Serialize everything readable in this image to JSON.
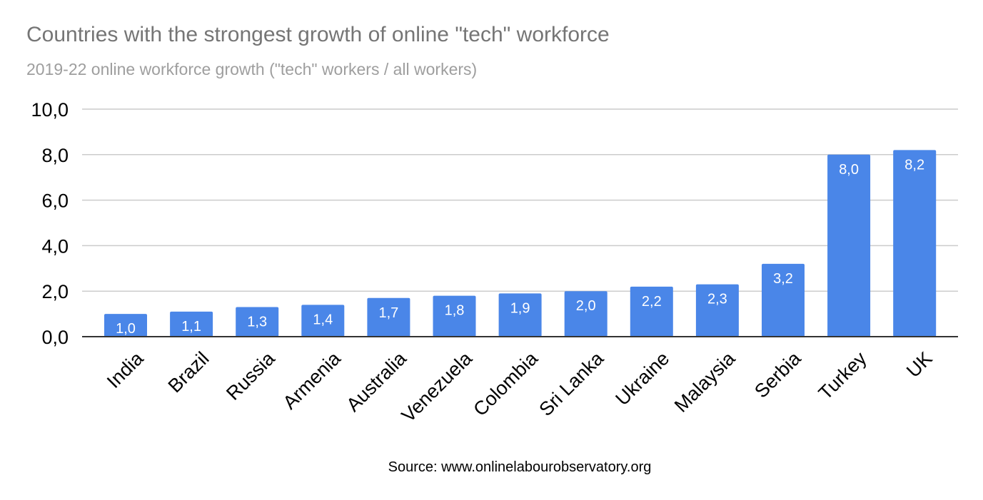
{
  "chart_data": {
    "type": "bar",
    "title": "Countries with the strongest growth of online \"tech\" workforce",
    "subtitle": "2019-22 online workforce growth (\"tech\" workers / all workers)",
    "source": "Source: www.onlinelabourobservatory.org",
    "categories": [
      "India",
      "Brazil",
      "Russia",
      "Armenia",
      "Australia",
      "Venezuela",
      "Colombia",
      "Sri Lanka",
      "Ukraine",
      "Malaysia",
      "Serbia",
      "Turkey",
      "UK"
    ],
    "values": [
      1.0,
      1.1,
      1.3,
      1.4,
      1.7,
      1.8,
      1.9,
      2.0,
      2.2,
      2.3,
      3.2,
      8.0,
      8.2
    ],
    "data_labels": [
      "1,0",
      "1,1",
      "1,3",
      "1,4",
      "1,7",
      "1,8",
      "1,9",
      "2,0",
      "2,2",
      "2,3",
      "3,2",
      "8,0",
      "8,2"
    ],
    "yticks": [
      0,
      2,
      4,
      6,
      8,
      10
    ],
    "ytick_labels": [
      "0,0",
      "2,0",
      "4,0",
      "6,0",
      "8,0",
      "10,0"
    ],
    "ylim": [
      0,
      10
    ],
    "xlabel": "",
    "ylabel": "",
    "grid": true,
    "legend": "none",
    "bar_color": "#4a86e8",
    "grid_color": "#cccccc",
    "axis_color": "#333333"
  }
}
